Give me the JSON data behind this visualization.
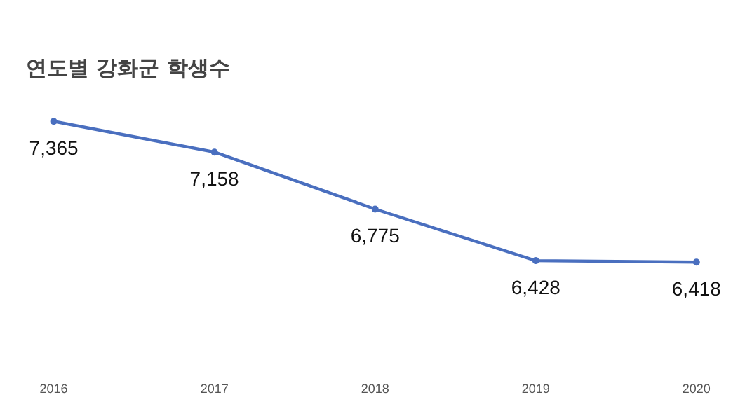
{
  "chart_data": {
    "type": "line",
    "title": "연도별 강화군 학생수",
    "categories": [
      "2016",
      "2017",
      "2018",
      "2019",
      "2020"
    ],
    "series": [
      {
        "color": "#4a6fbf",
        "values": [
          7365,
          7158,
          6775,
          6428,
          6418
        ],
        "value_labels": [
          "7,365",
          "7,158",
          "6,775",
          "6,428",
          "6,418"
        ]
      }
    ],
    "marker": "circle",
    "grid": false,
    "tick_labels": "x"
  }
}
